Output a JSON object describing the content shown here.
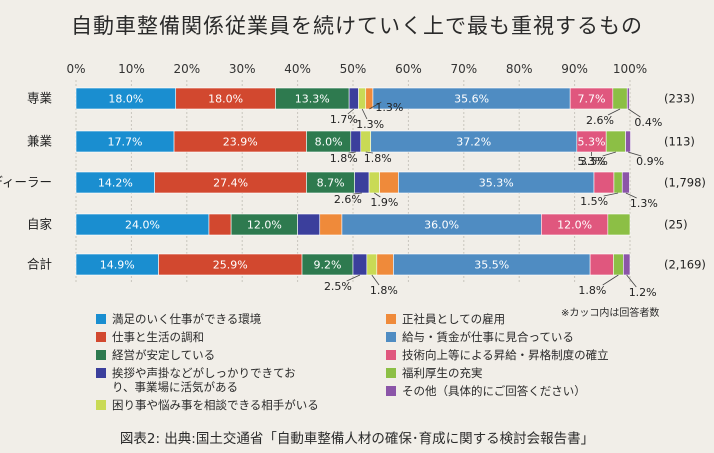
{
  "chart_data": {
    "type": "bar",
    "orientation": "horizontal",
    "stacked": true,
    "title": "自動車整備関係従業員を続けていく上で最も重視するもの",
    "xlim": [
      0,
      100
    ],
    "x_ticks": [
      "0%",
      "10%",
      "20%",
      "30%",
      "40%",
      "50%",
      "60%",
      "70%",
      "80%",
      "90%",
      "100%"
    ],
    "categories": [
      "専業",
      "兼業",
      "ディーラー",
      "自家",
      "合計"
    ],
    "respondents": [
      "(233)",
      "(113)",
      "(1,798)",
      "(25)",
      "(2,169)"
    ],
    "series": [
      {
        "name": "満足のいく仕事ができる環境",
        "color": "#1a8ed0",
        "values": [
          18.0,
          17.7,
          14.2,
          24.0,
          14.9
        ],
        "labels": [
          "18.0%",
          "17.7%",
          "14.2%",
          "24.0%",
          "14.9%"
        ]
      },
      {
        "name": "仕事と生活の調和",
        "color": "#d2482f",
        "values": [
          18.0,
          23.9,
          27.4,
          4.0,
          25.9
        ],
        "labels": [
          "18.0%",
          "23.9%",
          "27.4%",
          "4.0%",
          "25.9%"
        ]
      },
      {
        "name": "経営が安定している",
        "color": "#2e7a4f",
        "values": [
          13.3,
          8.0,
          8.7,
          12.0,
          9.2
        ],
        "labels": [
          "13.3%",
          "8.0%",
          "8.7%",
          "12.0%",
          "9.2%"
        ]
      },
      {
        "name": "挨拶や声掛などがしっかりできており、事業場に活気がある",
        "color": "#3b3f9c",
        "values": [
          1.7,
          1.8,
          2.6,
          4.0,
          2.5
        ],
        "labels": [
          "1.7%",
          "1.8%",
          "2.6%",
          "4.0%",
          "2.5%"
        ]
      },
      {
        "name": "困り事や悩み事を相談できる相手がいる",
        "color": "#c9da55",
        "values": [
          1.3,
          1.8,
          1.9,
          0,
          1.8
        ],
        "labels": [
          "1.3%",
          "1.8%",
          "1.9%",
          "",
          "1.8%"
        ]
      },
      {
        "name": "正社員としての雇用",
        "color": "#ef8a3a",
        "values": [
          1.3,
          0,
          3.4,
          4.0,
          3.0
        ],
        "labels": [
          "1.3%",
          "",
          "3.4%",
          "4.0%",
          "3.0%"
        ]
      },
      {
        "name": "給与・賃金が仕事に見合っている",
        "color": "#4f8cc2",
        "values": [
          35.6,
          37.2,
          35.3,
          36.0,
          35.5
        ],
        "labels": [
          "35.6%",
          "37.2%",
          "35.3%",
          "36.0%",
          "35.5%"
        ]
      },
      {
        "name": "技術向上等による昇給・昇格制度の確立",
        "color": "#e0577e",
        "values": [
          7.7,
          5.3,
          3.6,
          12.0,
          4.2
        ],
        "labels": [
          "7.7%",
          "5.3%",
          "3.6%",
          "12.0%",
          "4.2%"
        ]
      },
      {
        "name": "福利厚生の充実",
        "color": "#8cbf45",
        "values": [
          2.6,
          3.5,
          1.5,
          4.0,
          1.8
        ],
        "labels": [
          "2.6%",
          "3.5%",
          "1.5%",
          "4.0%",
          "1.8%"
        ]
      },
      {
        "name": "その他（具体的にご回答ください）",
        "color": "#8b55a8",
        "values": [
          0.4,
          0.9,
          1.3,
          0,
          1.2
        ],
        "labels": [
          "0.4%",
          "0.9%",
          "1.3%",
          "",
          "1.2%"
        ]
      }
    ],
    "legend_position": "bottom",
    "note": "※カッコ内は回答者数",
    "source": "図表2: 出典:国土交通省「自動車整備人材の確保･育成に関する検討会報告書」"
  }
}
